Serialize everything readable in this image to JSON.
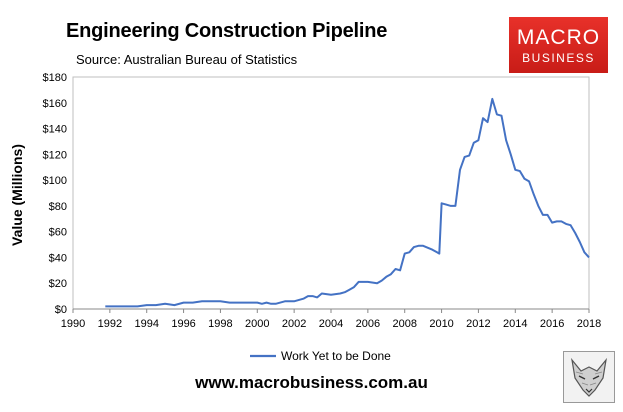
{
  "title": "Engineering Construction Pipeline",
  "subtitle": "Source: Australian Bureau of Statistics",
  "logo": {
    "line1": "MACRO",
    "line2": "BUSINESS",
    "color": "#d8241e",
    "name": "macrobusiness-logo"
  },
  "footer": "www.macrobusiness.com.au",
  "mascot_icon": "fox-icon",
  "chart_data": {
    "type": "line",
    "title": "Engineering Construction Pipeline",
    "xlabel": "",
    "ylabel": "Value (Millions)",
    "xlim": [
      1990,
      2018
    ],
    "ylim": [
      0,
      180
    ],
    "x_ticks": [
      "1990",
      "1992",
      "1994",
      "1996",
      "1998",
      "2000",
      "2002",
      "2004",
      "2006",
      "2008",
      "2010",
      "2012",
      "2014",
      "2016",
      "2018"
    ],
    "y_ticks": [
      "$0",
      "$20",
      "$40",
      "$60",
      "$80",
      "$100",
      "$120",
      "$140",
      "$160",
      "$180"
    ],
    "grid": false,
    "legend_position": "bottom",
    "series": [
      {
        "name": "Work Yet to be Done",
        "color": "#4472c4",
        "x": [
          1991.75,
          1992.0,
          1992.5,
          1993.0,
          1993.5,
          1994.0,
          1994.5,
          1995.0,
          1995.5,
          1996.0,
          1996.5,
          1997.0,
          1997.5,
          1998.0,
          1998.5,
          1999.0,
          1999.5,
          2000.0,
          2000.25,
          2000.5,
          2000.75,
          2001.0,
          2001.5,
          2002.0,
          2002.5,
          2002.75,
          2003.0,
          2003.25,
          2003.5,
          2004.0,
          2004.5,
          2004.75,
          2005.0,
          2005.25,
          2005.5,
          2005.75,
          2006.0,
          2006.5,
          2006.75,
          2007.0,
          2007.25,
          2007.5,
          2007.75,
          2008.0,
          2008.25,
          2008.5,
          2008.75,
          2009.0,
          2009.5,
          2009.75,
          2009.875,
          2010.0,
          2010.25,
          2010.5,
          2010.75,
          2011.0,
          2011.25,
          2011.5,
          2011.75,
          2012.0,
          2012.25,
          2012.5,
          2012.75,
          2013.0,
          2013.25,
          2013.5,
          2013.75,
          2014.0,
          2014.25,
          2014.5,
          2014.75,
          2015.0,
          2015.25,
          2015.5,
          2015.75,
          2016.0,
          2016.25,
          2016.5,
          2016.75,
          2017.0,
          2017.25,
          2017.5,
          2017.75,
          2018.0
        ],
        "values": [
          2,
          2,
          2,
          2,
          2,
          3,
          3,
          4,
          3,
          5,
          5,
          6,
          6,
          6,
          5,
          5,
          5,
          5,
          4,
          5,
          4,
          4,
          6,
          6,
          8,
          10,
          10,
          9,
          12,
          11,
          12,
          13,
          15,
          17,
          21,
          21,
          21,
          20,
          22,
          25,
          27,
          31,
          30,
          43,
          44,
          48,
          49,
          49,
          46,
          44,
          43,
          82,
          81,
          80,
          80,
          108,
          118,
          119,
          129,
          131,
          148,
          145,
          163,
          151,
          150,
          131,
          120,
          108,
          107,
          101,
          99,
          89,
          80,
          73,
          73,
          67,
          68,
          68,
          66,
          65,
          59,
          52,
          44,
          40
        ]
      }
    ]
  }
}
